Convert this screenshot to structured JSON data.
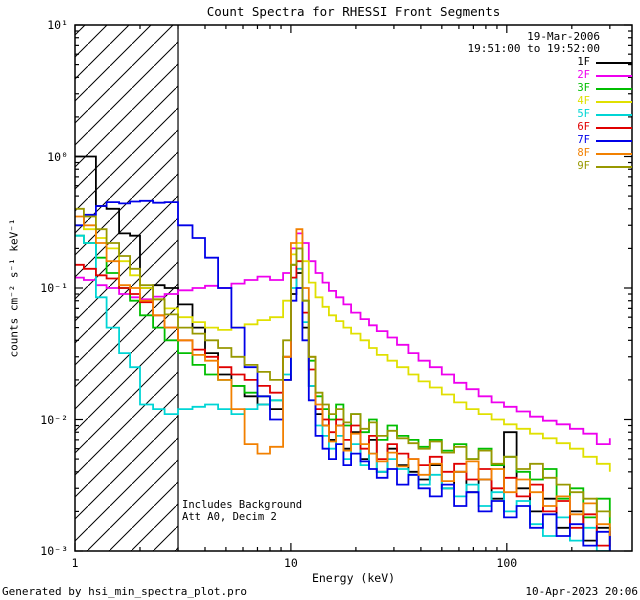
{
  "title": "Count Spectra for RHESSI Front Segments",
  "header": {
    "date": "19-Mar-2006",
    "time_range": "19:51:00 to 19:52:00"
  },
  "legend": {
    "items": [
      {
        "label": "1F",
        "color": "#000000"
      },
      {
        "label": "2F",
        "color": "#EE00EE"
      },
      {
        "label": "3F",
        "color": "#00BE00"
      },
      {
        "label": "4F",
        "color": "#E0E000"
      },
      {
        "label": "5F",
        "color": "#00D5D5"
      },
      {
        "label": "6F",
        "color": "#E00000"
      },
      {
        "label": "7F",
        "color": "#0000E8"
      },
      {
        "label": "8F",
        "color": "#F28000"
      },
      {
        "label": "9F",
        "color": "#989800"
      }
    ]
  },
  "axes": {
    "xlabel": "Energy (keV)",
    "ylabel": "counts cm⁻² s⁻¹ keV⁻¹",
    "x_tick_labels": [
      "1",
      "10",
      "100"
    ],
    "x_tick_values": [
      1,
      10,
      100
    ],
    "y_tick_labels": [
      "10¹",
      "10⁰",
      "10⁻¹",
      "10⁻²",
      "10⁻³"
    ],
    "y_tick_values": [
      10,
      1,
      0.1,
      0.01,
      0.001
    ]
  },
  "annotations": {
    "line1": "Includes Background",
    "line2": "Att A0, Decim 2"
  },
  "hatch_region": {
    "x_start": 1,
    "x_end": 3
  },
  "footer": {
    "left": "Generated by hsi_min_spectra_plot.pro",
    "right": "10-Apr-2023 20:06"
  },
  "chart_data": {
    "type": "line",
    "render": "steps",
    "x_scale": "log",
    "y_scale": "log",
    "title": "Count Spectra for RHESSI Front Segments",
    "xlabel": "Energy (keV)",
    "ylabel": "counts cm-2 s-1 keV-1",
    "xlim": [
      1,
      380
    ],
    "ylim": [
      0.001,
      10
    ],
    "legend_position": "top-right",
    "grid": false,
    "x": [
      1.0,
      1.1,
      1.25,
      1.4,
      1.6,
      1.8,
      2.0,
      2.3,
      2.6,
      3.0,
      3.5,
      4.0,
      4.6,
      5.3,
      6.1,
      7.0,
      8.0,
      9.2,
      10.0,
      10.6,
      11.3,
      12.1,
      13,
      14,
      15,
      16.2,
      17.5,
      19,
      21,
      23,
      25,
      28,
      31,
      35,
      39,
      44,
      50,
      57,
      65,
      74,
      85,
      97,
      111,
      128,
      147,
      170,
      196,
      226,
      261,
      300
    ],
    "series": [
      {
        "name": "1F",
        "color": "#000000",
        "values": [
          1.0,
          1.0,
          0.42,
          0.4,
          0.26,
          0.25,
          0.1,
          0.105,
          0.1,
          0.075,
          0.05,
          0.032,
          0.022,
          0.018,
          0.015,
          0.013,
          0.012,
          0.02,
          0.09,
          0.13,
          0.05,
          0.018,
          0.011,
          0.009,
          0.007,
          0.009,
          0.006,
          0.008,
          0.005,
          0.007,
          0.004,
          0.006,
          0.0045,
          0.004,
          0.0035,
          0.0045,
          0.003,
          0.004,
          0.0028,
          0.0035,
          0.0025,
          0.008,
          0.003,
          0.002,
          0.0025,
          0.0015,
          0.002,
          0.0012,
          0.0015,
          0.001
        ]
      },
      {
        "name": "2F",
        "color": "#EE00EE",
        "values": [
          0.12,
          0.115,
          0.105,
          0.1,
          0.09,
          0.085,
          0.082,
          0.086,
          0.09,
          0.096,
          0.1,
          0.104,
          0.1,
          0.108,
          0.115,
          0.122,
          0.115,
          0.13,
          0.2,
          0.26,
          0.22,
          0.16,
          0.13,
          0.11,
          0.095,
          0.085,
          0.075,
          0.065,
          0.058,
          0.052,
          0.047,
          0.042,
          0.037,
          0.032,
          0.028,
          0.025,
          0.022,
          0.019,
          0.017,
          0.015,
          0.0135,
          0.0125,
          0.0115,
          0.0105,
          0.0098,
          0.0092,
          0.0085,
          0.0078,
          0.0065,
          0.0072
        ]
      },
      {
        "name": "3F",
        "color": "#00BE00",
        "values": [
          0.25,
          0.22,
          0.17,
          0.13,
          0.1,
          0.08,
          0.062,
          0.05,
          0.04,
          0.032,
          0.026,
          0.022,
          0.02,
          0.018,
          0.016,
          0.015,
          0.014,
          0.03,
          0.15,
          0.2,
          0.08,
          0.028,
          0.015,
          0.012,
          0.01,
          0.013,
          0.009,
          0.011,
          0.008,
          0.01,
          0.007,
          0.009,
          0.0075,
          0.007,
          0.0062,
          0.007,
          0.0058,
          0.0065,
          0.005,
          0.006,
          0.0045,
          0.0052,
          0.004,
          0.0035,
          0.0042,
          0.0025,
          0.003,
          0.0018,
          0.0025,
          0.0012
        ]
      },
      {
        "name": "4F",
        "color": "#E0E000",
        "values": [
          0.3,
          0.28,
          0.24,
          0.2,
          0.16,
          0.125,
          0.1,
          0.082,
          0.07,
          0.06,
          0.055,
          0.05,
          0.048,
          0.05,
          0.053,
          0.057,
          0.06,
          0.08,
          0.18,
          0.22,
          0.16,
          0.11,
          0.085,
          0.072,
          0.062,
          0.056,
          0.05,
          0.045,
          0.04,
          0.035,
          0.031,
          0.028,
          0.025,
          0.022,
          0.0195,
          0.0175,
          0.0155,
          0.0135,
          0.012,
          0.011,
          0.01,
          0.0092,
          0.0085,
          0.0078,
          0.0072,
          0.0066,
          0.006,
          0.0052,
          0.0046,
          0.004
        ]
      },
      {
        "name": "5F",
        "color": "#00D5D5",
        "values": [
          0.25,
          0.22,
          0.085,
          0.05,
          0.032,
          0.025,
          0.013,
          0.012,
          0.011,
          0.012,
          0.0125,
          0.013,
          0.012,
          0.011,
          0.012,
          0.013,
          0.014,
          0.022,
          0.1,
          0.14,
          0.055,
          0.018,
          0.009,
          0.0075,
          0.006,
          0.0075,
          0.005,
          0.0065,
          0.0045,
          0.0055,
          0.004,
          0.005,
          0.0042,
          0.0038,
          0.0032,
          0.0038,
          0.003,
          0.0026,
          0.0032,
          0.0022,
          0.0028,
          0.002,
          0.0024,
          0.0016,
          0.0013,
          0.0018,
          0.0012,
          0.0015,
          0.001,
          0.0013
        ]
      },
      {
        "name": "6F",
        "color": "#E00000",
        "values": [
          0.15,
          0.14,
          0.125,
          0.118,
          0.1,
          0.09,
          0.078,
          0.062,
          0.05,
          0.04,
          0.034,
          0.03,
          0.025,
          0.022,
          0.02,
          0.018,
          0.016,
          0.03,
          0.12,
          0.16,
          0.065,
          0.024,
          0.012,
          0.01,
          0.008,
          0.01,
          0.007,
          0.009,
          0.006,
          0.0075,
          0.005,
          0.0065,
          0.0055,
          0.005,
          0.0045,
          0.0052,
          0.004,
          0.0046,
          0.0035,
          0.0042,
          0.003,
          0.0036,
          0.0026,
          0.0032,
          0.002,
          0.0024,
          0.0015,
          0.0019,
          0.0011,
          0.0014
        ]
      },
      {
        "name": "7F",
        "color": "#0000E8",
        "values": [
          0.3,
          0.36,
          0.42,
          0.45,
          0.44,
          0.455,
          0.46,
          0.445,
          0.45,
          0.3,
          0.24,
          0.17,
          0.1,
          0.05,
          0.025,
          0.015,
          0.01,
          0.02,
          0.08,
          0.1,
          0.04,
          0.014,
          0.0075,
          0.006,
          0.005,
          0.0065,
          0.0045,
          0.0055,
          0.0048,
          0.0042,
          0.0036,
          0.0042,
          0.0032,
          0.0038,
          0.003,
          0.0026,
          0.0032,
          0.0022,
          0.0028,
          0.002,
          0.0024,
          0.0018,
          0.0022,
          0.0015,
          0.0019,
          0.0013,
          0.0016,
          0.0011,
          0.0014,
          0.001
        ]
      },
      {
        "name": "8F",
        "color": "#F28000",
        "values": [
          0.35,
          0.3,
          0.22,
          0.16,
          0.105,
          0.1,
          0.08,
          0.062,
          0.05,
          0.04,
          0.031,
          0.028,
          0.02,
          0.012,
          0.0065,
          0.0055,
          0.0062,
          0.03,
          0.22,
          0.28,
          0.1,
          0.03,
          0.013,
          0.009,
          0.0068,
          0.009,
          0.0058,
          0.0078,
          0.0065,
          0.0055,
          0.0048,
          0.0056,
          0.0044,
          0.005,
          0.0038,
          0.0046,
          0.0034,
          0.004,
          0.0048,
          0.0035,
          0.0042,
          0.0028,
          0.0035,
          0.0028,
          0.0022,
          0.0026,
          0.0019,
          0.0023,
          0.0016,
          0.0013
        ]
      },
      {
        "name": "9F",
        "color": "#989800",
        "values": [
          0.4,
          0.35,
          0.28,
          0.22,
          0.175,
          0.14,
          0.105,
          0.082,
          0.063,
          0.05,
          0.045,
          0.04,
          0.035,
          0.03,
          0.026,
          0.023,
          0.02,
          0.04,
          0.15,
          0.2,
          0.08,
          0.03,
          0.016,
          0.013,
          0.011,
          0.012,
          0.0095,
          0.011,
          0.0085,
          0.0095,
          0.0075,
          0.0082,
          0.0072,
          0.0066,
          0.006,
          0.0068,
          0.0056,
          0.0062,
          0.005,
          0.0058,
          0.0046,
          0.0052,
          0.0042,
          0.0046,
          0.0036,
          0.0032,
          0.0028,
          0.0025,
          0.002,
          0.0018
        ]
      }
    ]
  }
}
